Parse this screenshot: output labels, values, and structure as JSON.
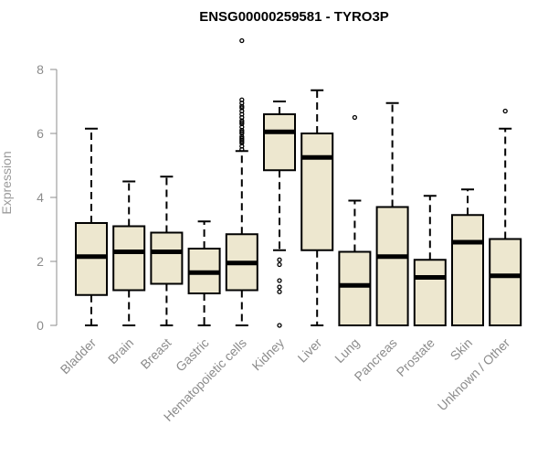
{
  "colors": {
    "box_fill": "#ede7cf",
    "stroke": "#000000",
    "axis": "#8c8c8c",
    "label": "#8c8c8c",
    "background": "#ffffff"
  },
  "chart_data": {
    "type": "boxplot",
    "title": "ENSG00000259581 - TYRO3P",
    "xlabel": "",
    "ylabel": "Expression",
    "ylim": [
      0,
      8
    ],
    "yticks": [
      0,
      2,
      4,
      6,
      8
    ],
    "grid": false,
    "categories": [
      "Bladder",
      "Brain",
      "Breast",
      "Gastric",
      "Hematopoietic cells",
      "Kidney",
      "Liver",
      "Lung",
      "Pancreas",
      "Prostate",
      "Skin",
      "Unknown / Other"
    ],
    "boxes": [
      {
        "name": "Bladder",
        "whislo": 0,
        "q1": 0.95,
        "median": 2.15,
        "q3": 3.2,
        "whishi": 6.15,
        "fliers": []
      },
      {
        "name": "Brain",
        "whislo": 0,
        "q1": 1.1,
        "median": 2.3,
        "q3": 3.1,
        "whishi": 4.5,
        "fliers": []
      },
      {
        "name": "Breast",
        "whislo": 0,
        "q1": 1.3,
        "median": 2.3,
        "q3": 2.9,
        "whishi": 4.65,
        "fliers": []
      },
      {
        "name": "Gastric",
        "whislo": 0,
        "q1": 1.0,
        "median": 1.65,
        "q3": 2.4,
        "whishi": 3.25,
        "fliers": []
      },
      {
        "name": "Hematopoietic cells",
        "whislo": 0,
        "q1": 1.1,
        "median": 1.95,
        "q3": 2.85,
        "whishi": 5.45,
        "fliers": [
          5.5,
          5.6,
          5.7,
          5.75,
          5.8,
          5.85,
          5.9,
          6.0,
          6.05,
          6.1,
          6.2,
          6.3,
          6.35,
          6.4,
          6.5,
          6.6,
          6.7,
          6.8,
          6.85,
          6.95,
          7.05,
          8.9
        ]
      },
      {
        "name": "Kidney",
        "whislo": 2.35,
        "q1": 4.85,
        "median": 6.05,
        "q3": 6.6,
        "whishi": 7.0,
        "fliers": [
          0.0,
          1.05,
          1.2,
          1.4,
          1.9,
          2.05
        ]
      },
      {
        "name": "Liver",
        "whislo": 0,
        "q1": 2.35,
        "median": 5.25,
        "q3": 6.0,
        "whishi": 7.35,
        "fliers": []
      },
      {
        "name": "Lung",
        "whislo": 0,
        "q1": 0,
        "median": 1.25,
        "q3": 2.3,
        "whishi": 3.9,
        "fliers": [
          6.5
        ]
      },
      {
        "name": "Pancreas",
        "whislo": 0,
        "q1": 0,
        "median": 2.15,
        "q3": 3.7,
        "whishi": 6.95,
        "fliers": []
      },
      {
        "name": "Prostate",
        "whislo": 0,
        "q1": 0,
        "median": 1.5,
        "q3": 2.05,
        "whishi": 4.05,
        "fliers": []
      },
      {
        "name": "Skin",
        "whislo": 0,
        "q1": 0,
        "median": 2.6,
        "q3": 3.45,
        "whishi": 4.25,
        "fliers": []
      },
      {
        "name": "Unknown / Other",
        "whislo": 0,
        "q1": 0,
        "median": 1.55,
        "q3": 2.7,
        "whishi": 6.15,
        "fliers": [
          6.7
        ]
      }
    ]
  }
}
